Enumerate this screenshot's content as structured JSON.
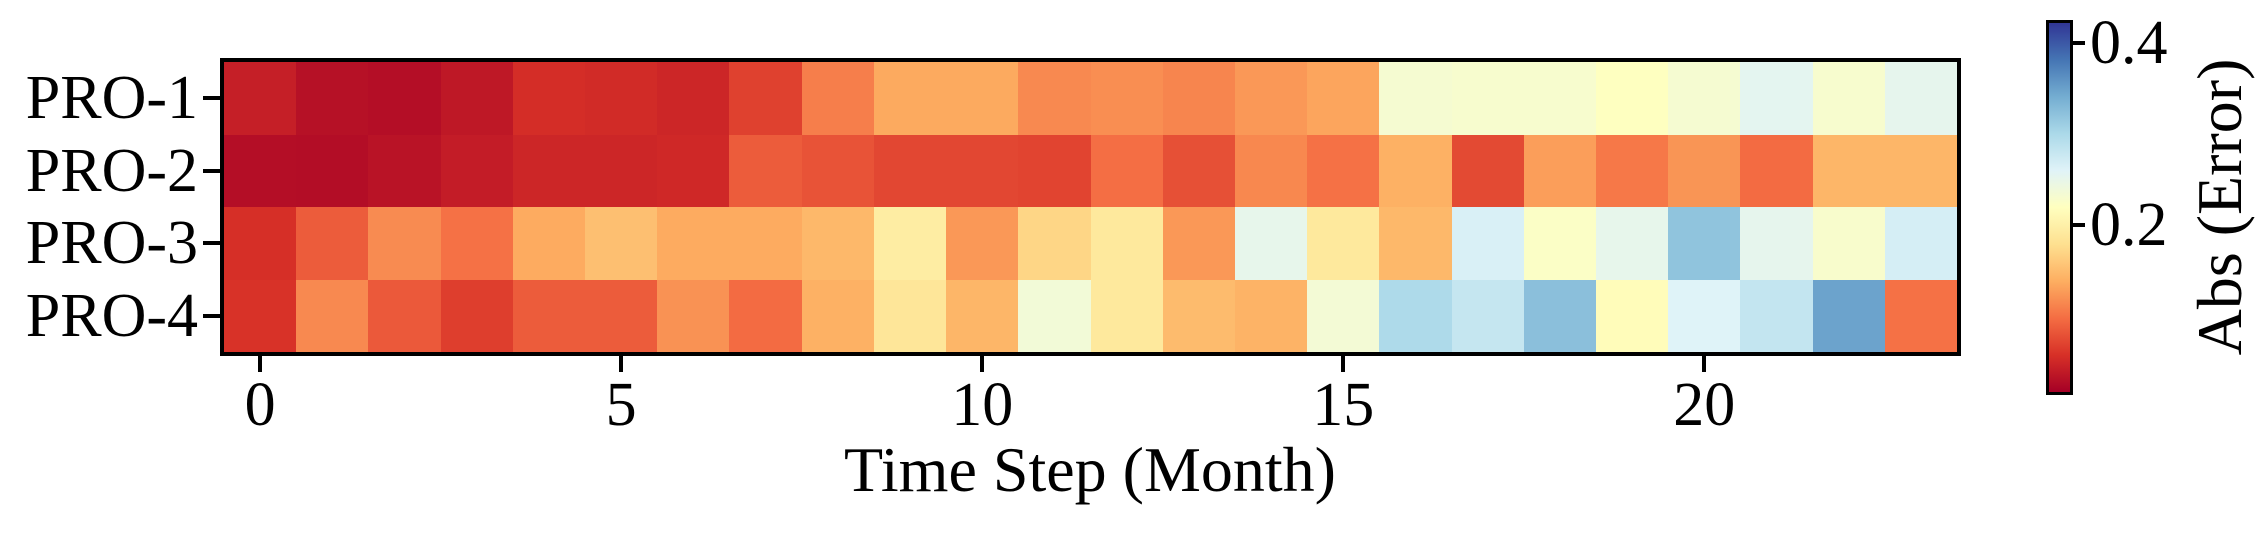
{
  "figure": {
    "background_color": "#ffffff",
    "text_color": "#000000"
  },
  "chart_data": {
    "type": "heatmap",
    "title": "",
    "xlabel": "Time Step (Month)",
    "ylabel": "",
    "rows": [
      "PRO-1",
      "PRO-2",
      "PRO-3",
      "PRO-4"
    ],
    "x": [
      0,
      1,
      2,
      3,
      4,
      5,
      6,
      7,
      8,
      9,
      10,
      11,
      12,
      13,
      14,
      15,
      16,
      17,
      18,
      19,
      20,
      21,
      22,
      23
    ],
    "x_ticks": [
      {
        "label": "0",
        "col": 0
      },
      {
        "label": "5",
        "col": 5
      },
      {
        "label": "10",
        "col": 10
      },
      {
        "label": "15",
        "col": 15
      },
      {
        "label": "20",
        "col": 20
      }
    ],
    "series": [
      {
        "name": "PRO-1",
        "values": [
          0.042,
          0.03,
          0.028,
          0.036,
          0.054,
          0.052,
          0.048,
          0.068,
          0.108,
          0.135,
          0.135,
          0.115,
          0.118,
          0.112,
          0.124,
          0.132,
          0.232,
          0.23,
          0.23,
          0.22,
          0.232,
          0.254,
          0.23,
          0.252
        ]
      },
      {
        "name": "PRO-2",
        "values": [
          0.028,
          0.027,
          0.032,
          0.04,
          0.048,
          0.048,
          0.05,
          0.086,
          0.08,
          0.072,
          0.072,
          0.07,
          0.098,
          0.078,
          0.114,
          0.1,
          0.14,
          0.074,
          0.128,
          0.104,
          0.122,
          0.096,
          0.144,
          0.144
        ]
      },
      {
        "name": "PRO-3",
        "values": [
          0.056,
          0.086,
          0.116,
          0.1,
          0.136,
          0.152,
          0.136,
          0.136,
          0.146,
          0.195,
          0.124,
          0.17,
          0.19,
          0.124,
          0.25,
          0.19,
          0.146,
          0.265,
          0.224,
          0.25,
          0.32,
          0.252,
          0.228,
          0.268
        ]
      },
      {
        "name": "PRO-4",
        "values": [
          0.058,
          0.115,
          0.084,
          0.066,
          0.086,
          0.086,
          0.12,
          0.096,
          0.14,
          0.186,
          0.144,
          0.236,
          0.19,
          0.148,
          0.142,
          0.235,
          0.298,
          0.28,
          0.324,
          0.215,
          0.26,
          0.282,
          0.348,
          0.1
        ]
      }
    ],
    "colorbar": {
      "label": "Abs (Error)",
      "ticks": [
        {
          "label": "0.4",
          "value": 0.4
        },
        {
          "label": "0.2",
          "value": 0.2
        }
      ],
      "vmin": 0.016,
      "vmax": 0.422
    },
    "colormap": {
      "name": "RdYlBu",
      "stops": [
        {
          "t": 0.0,
          "color": "#a50026"
        },
        {
          "t": 0.1,
          "color": "#d73027"
        },
        {
          "t": 0.2,
          "color": "#f46d43"
        },
        {
          "t": 0.3,
          "color": "#fdae61"
        },
        {
          "t": 0.4,
          "color": "#fee090"
        },
        {
          "t": 0.5,
          "color": "#ffffbf"
        },
        {
          "t": 0.6,
          "color": "#e0f3f8"
        },
        {
          "t": 0.7,
          "color": "#abd9e9"
        },
        {
          "t": 0.8,
          "color": "#74add1"
        },
        {
          "t": 0.9,
          "color": "#4575b4"
        },
        {
          "t": 1.0,
          "color": "#313695"
        }
      ]
    },
    "grid": false,
    "legend_position": "none"
  }
}
